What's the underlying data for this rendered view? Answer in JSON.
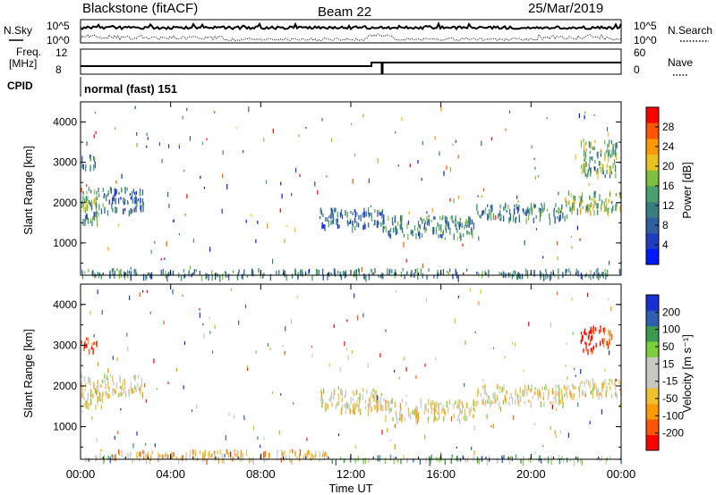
{
  "header": {
    "station": "Blackstone (fitACF)",
    "beam": "Beam 22",
    "date": "25/Mar/2019"
  },
  "top_panels": {
    "nsky_label": "N.Sky",
    "nsky_ticks": [
      "10^5",
      "10^0"
    ],
    "nsearch_label": "N.Search",
    "nsearch_ticks": [
      "10^5",
      "10^0"
    ],
    "freq_label_1": "Freq.",
    "freq_label_2": "[MHz]",
    "freq_ticks": [
      "12",
      "8"
    ],
    "nave_label": "Nave",
    "nave_ticks": [
      "60",
      "0"
    ],
    "cpid_label": "CPID",
    "cpid_value": "normal (fast) 151"
  },
  "colors": {
    "power_scale": [
      "#0018ff",
      "#1f3fbf",
      "#2f5f9f",
      "#3a7f7f",
      "#4a9f6a",
      "#7fbf3f",
      "#e8c020",
      "#ff9900",
      "#ff5500",
      "#ff0000"
    ],
    "velocity_scale": [
      "#ff0000",
      "#ff5500",
      "#ff9900",
      "#f0c030",
      "#c8c8c0",
      "#c8c8c0",
      "#7ccf3a",
      "#3a9a50",
      "#2f5fb0",
      "#1830d0"
    ]
  },
  "chart_data": [
    {
      "type": "heatmap",
      "name_hint": "power",
      "xlabel": "",
      "ylabel": "Slant Range [km]",
      "ylim": [
        200,
        4500
      ],
      "y_ticks": [
        "4000",
        "3000",
        "2000",
        "1000"
      ],
      "xlim": [
        0,
        24
      ],
      "colorbar_label": "Power [dB]",
      "colorbar_ticks": [
        "28",
        "24",
        "20",
        "16",
        "12",
        "8",
        "4"
      ],
      "bands": [
        {
          "t0": 0.0,
          "t1": 1.0,
          "r0": 1500,
          "r1": 2400,
          "level": 4
        },
        {
          "t0": 1.0,
          "t1": 2.8,
          "r0": 1800,
          "r1": 2400,
          "level": 2
        },
        {
          "t0": 0.0,
          "t1": 0.7,
          "r0": 2900,
          "r1": 3200,
          "level": 3
        },
        {
          "t0": 10.6,
          "t1": 13.5,
          "r0": 1400,
          "r1": 1900,
          "level": 2
        },
        {
          "t0": 13.5,
          "t1": 17.5,
          "r0": 1200,
          "r1": 1700,
          "level": 3
        },
        {
          "t0": 17.5,
          "t1": 21.5,
          "r0": 1600,
          "r1": 2000,
          "level": 3
        },
        {
          "t0": 21.5,
          "t1": 24.0,
          "r0": 1800,
          "r1": 2300,
          "level": 5
        },
        {
          "t0": 22.2,
          "t1": 23.8,
          "r0": 2700,
          "r1": 3600,
          "level": 4
        },
        {
          "t0": 0.0,
          "t1": 24.0,
          "r0": 200,
          "r1": 380,
          "level": 3
        }
      ]
    },
    {
      "type": "heatmap",
      "name_hint": "velocity",
      "xlabel": "Time UT",
      "ylabel": "Slant Range [km]",
      "ylim": [
        200,
        4500
      ],
      "y_ticks": [
        "4000",
        "3000",
        "2000",
        "1000"
      ],
      "xlim": [
        0,
        24
      ],
      "x_ticks": [
        "00:00",
        "04:00",
        "08:00",
        "12:00",
        "16:00",
        "20:00",
        "00:00"
      ],
      "colorbar_label": "Velocity [m s⁻¹]",
      "colorbar_ticks": [
        "200",
        "100",
        "50",
        "15",
        "-15",
        "-50",
        "-100",
        "-200"
      ],
      "bands": [
        {
          "t0": 0.0,
          "t1": 1.0,
          "r0": 1500,
          "r1": 2300,
          "level": 4
        },
        {
          "t0": 1.0,
          "t1": 2.8,
          "r0": 1800,
          "r1": 2300,
          "level": 4
        },
        {
          "t0": 0.0,
          "t1": 0.8,
          "r0": 2900,
          "r1": 3200,
          "level": 0
        },
        {
          "t0": 10.6,
          "t1": 13.5,
          "r0": 1400,
          "r1": 1950,
          "level": 4
        },
        {
          "t0": 13.5,
          "t1": 17.5,
          "r0": 1200,
          "r1": 1700,
          "level": 4
        },
        {
          "t0": 17.5,
          "t1": 21.5,
          "r0": 1600,
          "r1": 2050,
          "level": 4
        },
        {
          "t0": 21.5,
          "t1": 24.0,
          "r0": 1800,
          "r1": 2200,
          "level": 4
        },
        {
          "t0": 22.2,
          "t1": 23.6,
          "r0": 2900,
          "r1": 3500,
          "level": 0
        },
        {
          "t0": 1.5,
          "t1": 11.0,
          "r0": 200,
          "r1": 450,
          "level": 3
        },
        {
          "t0": 0.0,
          "t1": 1.5,
          "r0": 200,
          "r1": 350,
          "level": 6
        },
        {
          "t0": 11.0,
          "t1": 24.0,
          "r0": 200,
          "r1": 320,
          "level": 6
        }
      ]
    }
  ]
}
